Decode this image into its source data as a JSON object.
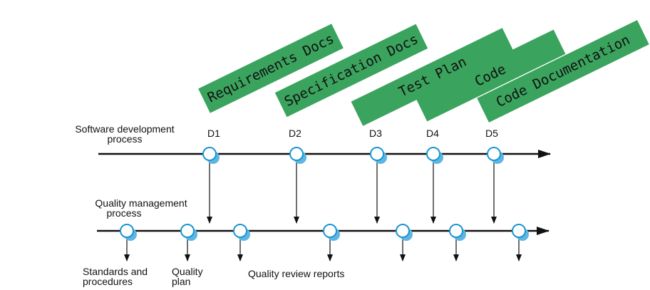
{
  "colors": {
    "banner_fill": "#3aa35d",
    "node_fill": "#ffffff",
    "node_stroke": "#1a96d1",
    "node_shadow": "#5fb6e2",
    "line": "#111111"
  },
  "documents": [
    "Requirements Docs",
    "Specification Docs",
    "Test Plan",
    "Code",
    "Code Documentation"
  ],
  "deliverables": [
    "D1",
    "D2",
    "D3",
    "D4",
    "D5"
  ],
  "labels": {
    "software_process": [
      "Software development",
      "process"
    ],
    "quality_process": [
      "Quality management",
      "process"
    ],
    "standards": [
      "Standards and",
      "procedures"
    ],
    "quality_plan": [
      "Quality",
      "plan"
    ],
    "review_reports": "Quality review reports"
  }
}
